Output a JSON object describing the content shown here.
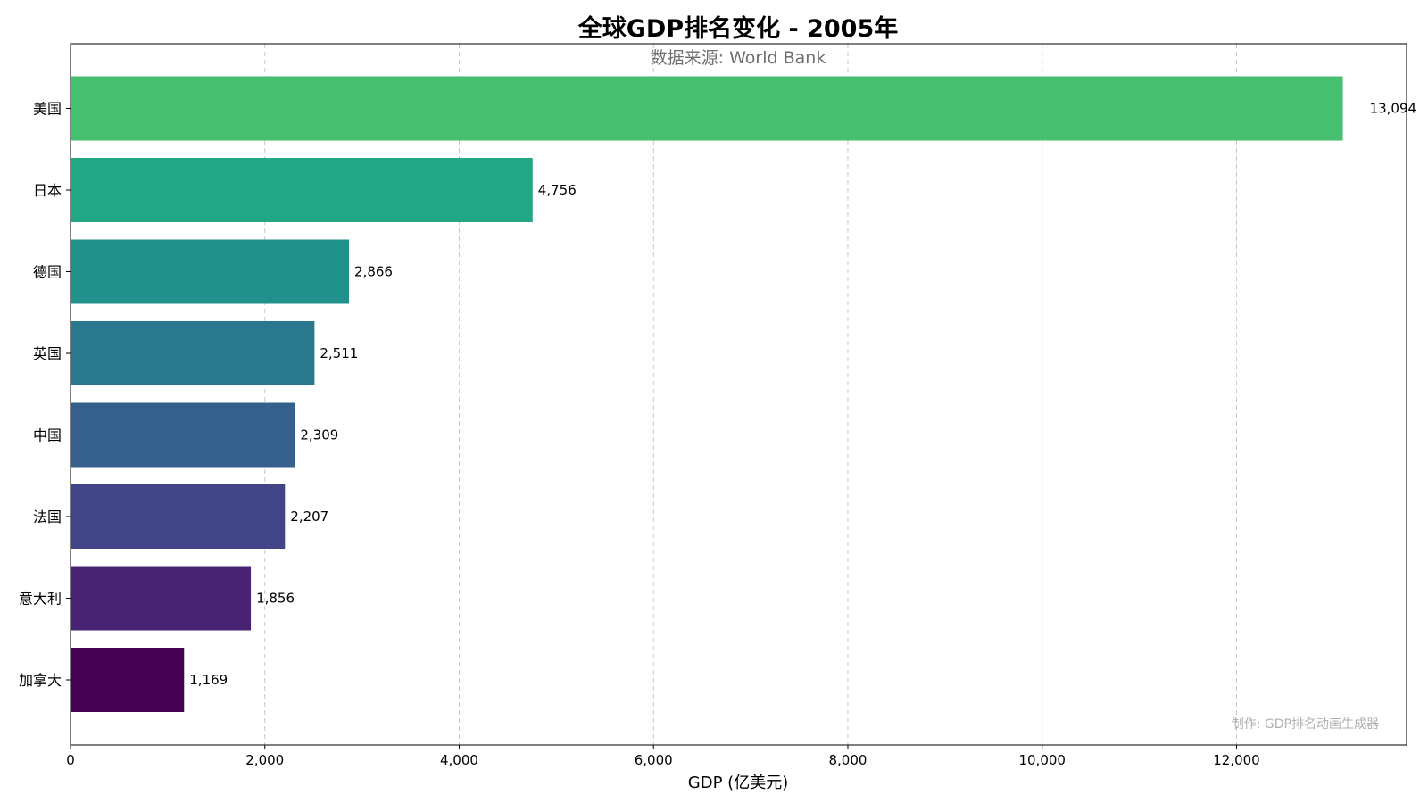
{
  "chart_data": {
    "type": "bar",
    "orientation": "horizontal",
    "title": "全球GDP排名变化 - 2005年",
    "subtitle": "数据来源: World Bank",
    "xlabel": "GDP (亿美元)",
    "ylabel": "",
    "xlim": [
      0,
      13750
    ],
    "xticks": [
      0,
      2000,
      4000,
      6000,
      8000,
      10000,
      12000
    ],
    "xtick_labels": [
      "0",
      "2,000",
      "4,000",
      "6,000",
      "8,000",
      "10,000",
      "12,000"
    ],
    "grid": "x-dashed",
    "categories": [
      "美国",
      "日本",
      "德国",
      "英国",
      "中国",
      "法国",
      "意大利",
      "加拿大"
    ],
    "values": [
      13094,
      4756,
      2866,
      2511,
      2309,
      2207,
      1856,
      1169
    ],
    "value_labels": [
      "13,094",
      "4,756",
      "2,866",
      "2,511",
      "2,309",
      "2,207",
      "1,856",
      "1,169"
    ],
    "colors": [
      "#46bf6f",
      "#22a884",
      "#21918c",
      "#2a788e",
      "#355f8d",
      "#414487",
      "#482374",
      "#440154"
    ],
    "watermark": "制作: GDP排名动画生成器"
  }
}
